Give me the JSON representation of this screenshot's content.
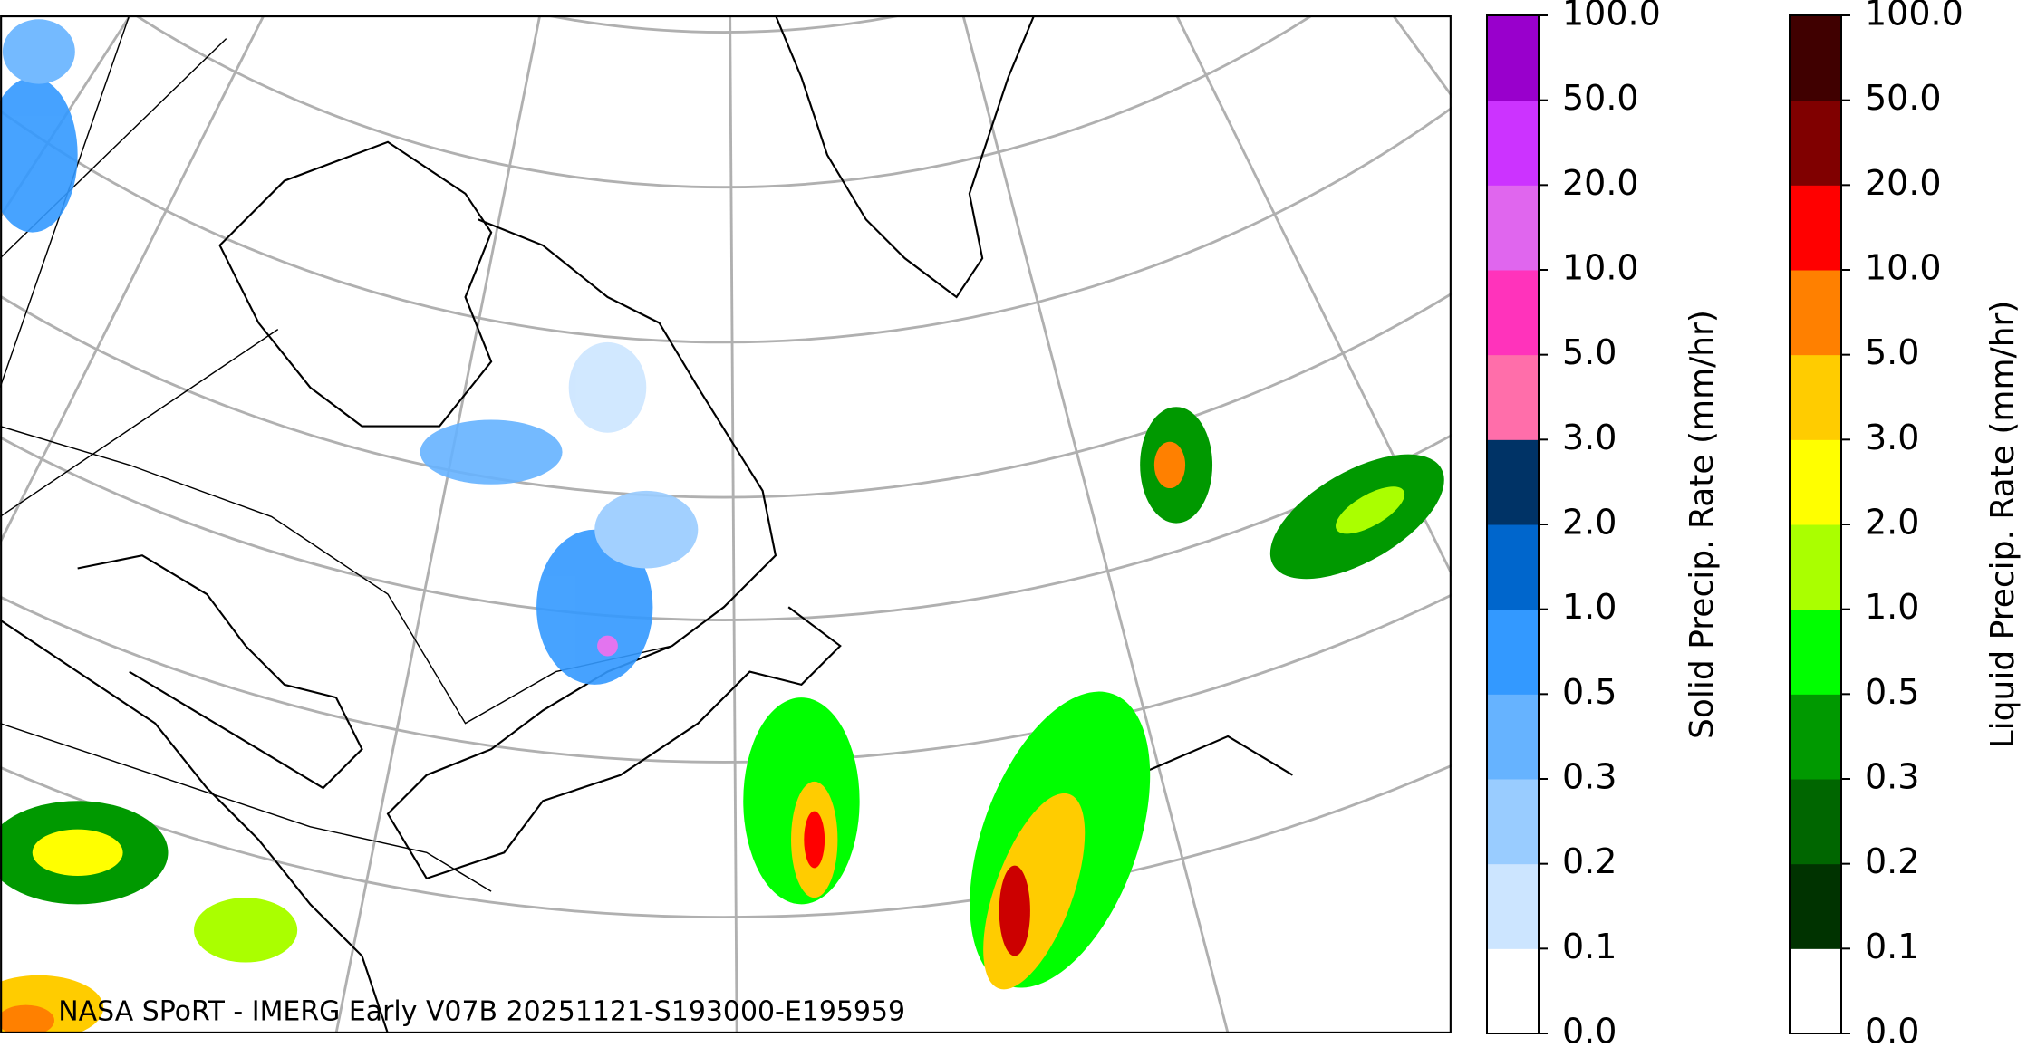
{
  "annotation": "NASA SPoRT - IMERG Early V07B 20251121-S193000-E195959",
  "colorbars": [
    {
      "label": "Solid Precip. Rate (mm/hr)",
      "ticks": [
        "0.0",
        "0.1",
        "0.2",
        "0.3",
        "0.5",
        "1.0",
        "2.0",
        "3.0",
        "5.0",
        "10.0",
        "20.0",
        "50.0",
        "100.0"
      ],
      "colors": [
        "#ffffff",
        "#cce5ff",
        "#99ccff",
        "#66b3ff",
        "#3399ff",
        "#0066cc",
        "#003366",
        "#ff6eaa",
        "#ff33bb",
        "#e066ee",
        "#cc33ff",
        "#9900cc"
      ]
    },
    {
      "label": "Liquid Precip. Rate (mm/hr)",
      "ticks": [
        "0.0",
        "0.1",
        "0.2",
        "0.3",
        "0.5",
        "1.0",
        "2.0",
        "3.0",
        "5.0",
        "10.0",
        "20.0",
        "50.0",
        "100.0"
      ],
      "colors": [
        "#ffffff",
        "#003300",
        "#006600",
        "#009900",
        "#00ff00",
        "#aaff00",
        "#ffff00",
        "#ffcc00",
        "#ff8000",
        "#ff0000",
        "#800000",
        "#400000"
      ]
    }
  ]
}
